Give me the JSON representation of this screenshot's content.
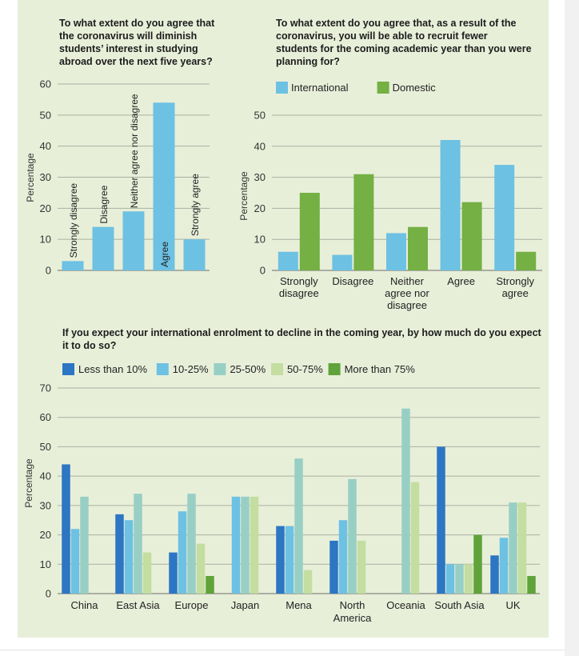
{
  "colors": {
    "panel_background": "#e8efd9",
    "grid": "#a9b0a2",
    "axis_text": "#333333",
    "international": "#6dc1e3",
    "domestic": "#74b043",
    "less_than_10": "#2c76c3",
    "10_25": "#6dc1e3",
    "25_50": "#98cfc5",
    "50_75": "#c3dea0",
    "more_than_75": "#5fa33a"
  },
  "chart_data": [
    {
      "type": "bar",
      "title": "To what extent do you agree that the coronavirus will diminish students’ interest in studying abroad over the next five years?",
      "ylabel": "Percentage",
      "ylim": [
        0,
        60
      ],
      "yticks": [
        "0",
        "10",
        "20",
        "30",
        "40",
        "50",
        "60"
      ],
      "grid": true,
      "categories": [
        "Strongly disagree",
        "Disagree",
        "Neither agree nor disagree",
        "Agree",
        "Strongly agree"
      ],
      "values": [
        3,
        14,
        19,
        54,
        10
      ],
      "bar_color": "#6dc1e3"
    },
    {
      "type": "bar",
      "title": "To what extent do you agree that, as a result of the coronavirus, you will be able to recruit fewer students for the coming academic year than you were planning for?",
      "ylabel": "Percentage",
      "ylim": [
        0,
        50
      ],
      "yticks": [
        "0",
        "10",
        "20",
        "30",
        "40",
        "50"
      ],
      "grid": true,
      "legend_position": "top-left",
      "categories": [
        [
          "Strongly",
          "disagree"
        ],
        [
          "Disagree"
        ],
        [
          "Neither",
          "agree nor",
          "disagree"
        ],
        [
          "Agree"
        ],
        [
          "Strongly",
          "agree"
        ]
      ],
      "series": [
        {
          "name": "International",
          "values": [
            6,
            5,
            12,
            42,
            34
          ],
          "color": "#6dc1e3"
        },
        {
          "name": "Domestic",
          "values": [
            25,
            31,
            14,
            22,
            6
          ],
          "color": "#74b043"
        }
      ]
    },
    {
      "type": "bar",
      "title": "If you expect your international enrolment to decline in the coming year, by how much do you expect it to do so?",
      "ylabel": "Percentage",
      "ylim": [
        0,
        70
      ],
      "yticks": [
        "0",
        "10",
        "20",
        "30",
        "40",
        "50",
        "60",
        "70"
      ],
      "grid": true,
      "legend_position": "top-left",
      "categories": [
        [
          "China"
        ],
        [
          "East Asia"
        ],
        [
          "Europe"
        ],
        [
          "Japan"
        ],
        [
          "Mena"
        ],
        [
          "North",
          "America"
        ],
        [
          "Oceania"
        ],
        [
          "South Asia"
        ],
        [
          "UK"
        ]
      ],
      "series": [
        {
          "name": "Less than 10%",
          "values": [
            44,
            27,
            14,
            0,
            23,
            18,
            0,
            50,
            13
          ],
          "color": "#2c76c3"
        },
        {
          "name": "10-25%",
          "values": [
            22,
            25,
            28,
            33,
            23,
            25,
            0,
            10,
            19
          ],
          "color": "#6dc1e3"
        },
        {
          "name": "25-50%",
          "values": [
            33,
            34,
            34,
            33,
            46,
            39,
            63,
            10,
            31
          ],
          "color": "#98cfc5"
        },
        {
          "name": "50-75%",
          "values": [
            0,
            14,
            17,
            33,
            8,
            18,
            38,
            10,
            31
          ],
          "color": "#c3dea0"
        },
        {
          "name": "More than 75%",
          "values": [
            0,
            0,
            6,
            0,
            0,
            0,
            0,
            20,
            6
          ],
          "color": "#5fa33a"
        }
      ]
    }
  ]
}
